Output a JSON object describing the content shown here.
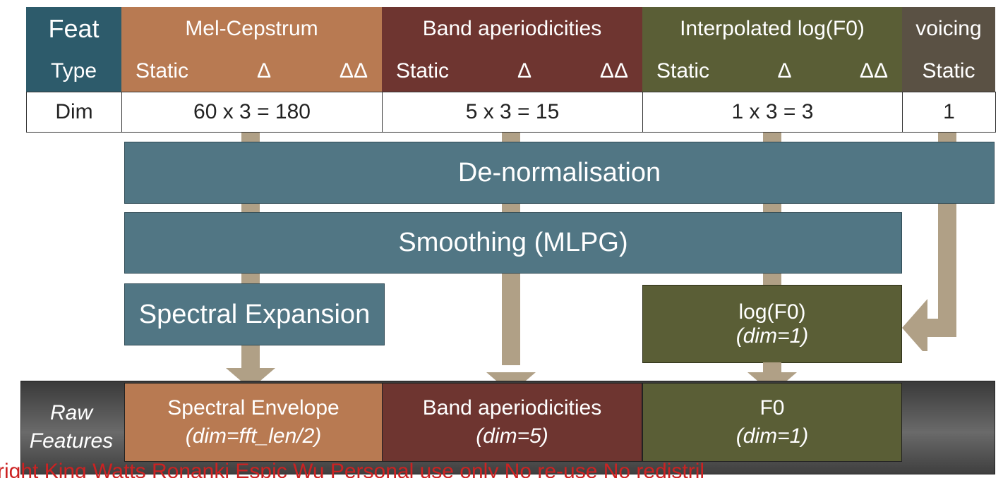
{
  "colors": {
    "teal_header": "#2d5b6b",
    "mel": "#b87a52",
    "band": "#6e3530",
    "f0": "#5a5e36",
    "voicing": "#5a5144",
    "process": "#517684",
    "arrow": "#b0a086",
    "copyright": "#cc2222"
  },
  "header": {
    "feat_label": "Feat",
    "type_label": "Type",
    "dim_label": "Dim",
    "columns": [
      {
        "name": "Mel-Cepstrum",
        "types": [
          "Static",
          "Δ",
          "ΔΔ"
        ],
        "dim": "60 x 3 = 180"
      },
      {
        "name": "Band aperiodicities",
        "types": [
          "Static",
          "Δ",
          "ΔΔ"
        ],
        "dim": "5 x 3 = 15"
      },
      {
        "name": "Interpolated log(F0)",
        "types": [
          "Static",
          "Δ",
          "ΔΔ"
        ],
        "dim": "1 x 3 = 3"
      },
      {
        "name": "voicing",
        "types": [
          "Static"
        ],
        "dim": "1"
      }
    ]
  },
  "processing": {
    "denorm": "De-normalisation",
    "smoothing": "Smoothing (MLPG)",
    "spectral_expansion": "Spectral Expansion",
    "logf0_title": "log(F0)",
    "logf0_dim": "(dim=1)"
  },
  "raw_features": {
    "label_line1": "Raw",
    "label_line2": "Features",
    "outputs": [
      {
        "name": "Spectral Envelope",
        "dim": "(dim=fft_len/2)"
      },
      {
        "name": "Band aperiodicities",
        "dim": "(dim=5)"
      },
      {
        "name": "F0",
        "dim": "(dim=1)"
      }
    ]
  },
  "copyright": "right King Watts Ronanki Espic Wu Personal use only No re-use No redistribution"
}
